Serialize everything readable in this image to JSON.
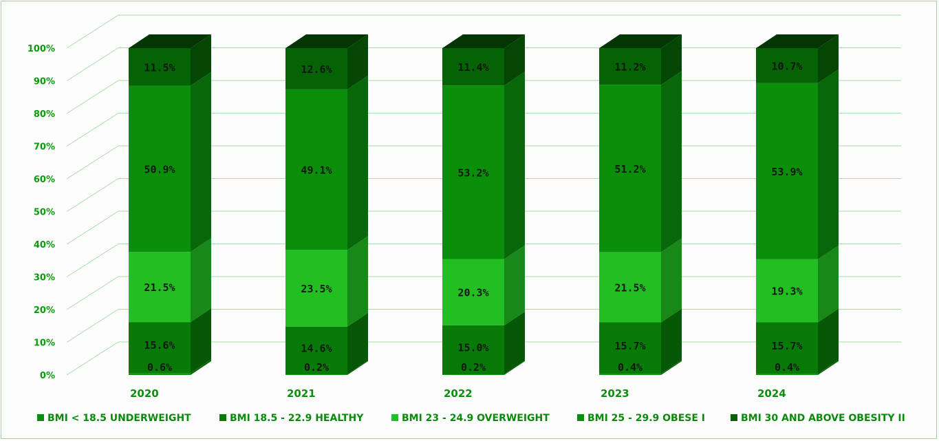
{
  "chart_data": {
    "type": "bar",
    "stacked": true,
    "three_d": true,
    "categories": [
      "2020",
      "2021",
      "2022",
      "2023",
      "2024"
    ],
    "y_ticks": [
      "0%",
      "10%",
      "20%",
      "30%",
      "40%",
      "50%",
      "60%",
      "70%",
      "80%",
      "90%",
      "100%"
    ],
    "ylim": [
      0,
      100
    ],
    "grid": true,
    "legend_position": "bottom",
    "series": [
      {
        "name": "BMI < 18.5 UNDERWEIGHT",
        "values": [
          0.6,
          0.2,
          0.2,
          0.4,
          0.4
        ],
        "labels": [
          "0.6%",
          "0.2%",
          "0.2%",
          "0.4%",
          "0.4%"
        ],
        "color": "#0b8f0b"
      },
      {
        "name": "BMI 18.5 - 22.9 HEALTHY",
        "values": [
          15.6,
          14.6,
          15.0,
          15.7,
          15.7
        ],
        "labels": [
          "15.6%",
          "14.6%",
          "15.0%",
          "15.7%",
          "15.7%"
        ],
        "color": "#087a08"
      },
      {
        "name": "BMI 23 - 24.9 OVERWEIGHT",
        "values": [
          21.5,
          23.5,
          20.3,
          21.5,
          19.3
        ],
        "labels": [
          "21.5%",
          "23.5%",
          "20.3%",
          "21.5%",
          "19.3%"
        ],
        "color": "#22be22"
      },
      {
        "name": "BMI 25 - 29.9 OBESE I",
        "values": [
          50.9,
          49.1,
          53.2,
          51.2,
          53.9
        ],
        "labels": [
          "50.9%",
          "49.1%",
          "53.2%",
          "51.2%",
          "53.9%"
        ],
        "color": "#0b8f0b"
      },
      {
        "name": "BMI 30 AND ABOVE OBESITY II",
        "values": [
          11.5,
          12.6,
          11.4,
          11.2,
          10.7
        ],
        "labels": [
          "11.5%",
          "12.6%",
          "11.4%",
          "11.2%",
          "10.7%"
        ],
        "color": "#056205"
      }
    ]
  }
}
